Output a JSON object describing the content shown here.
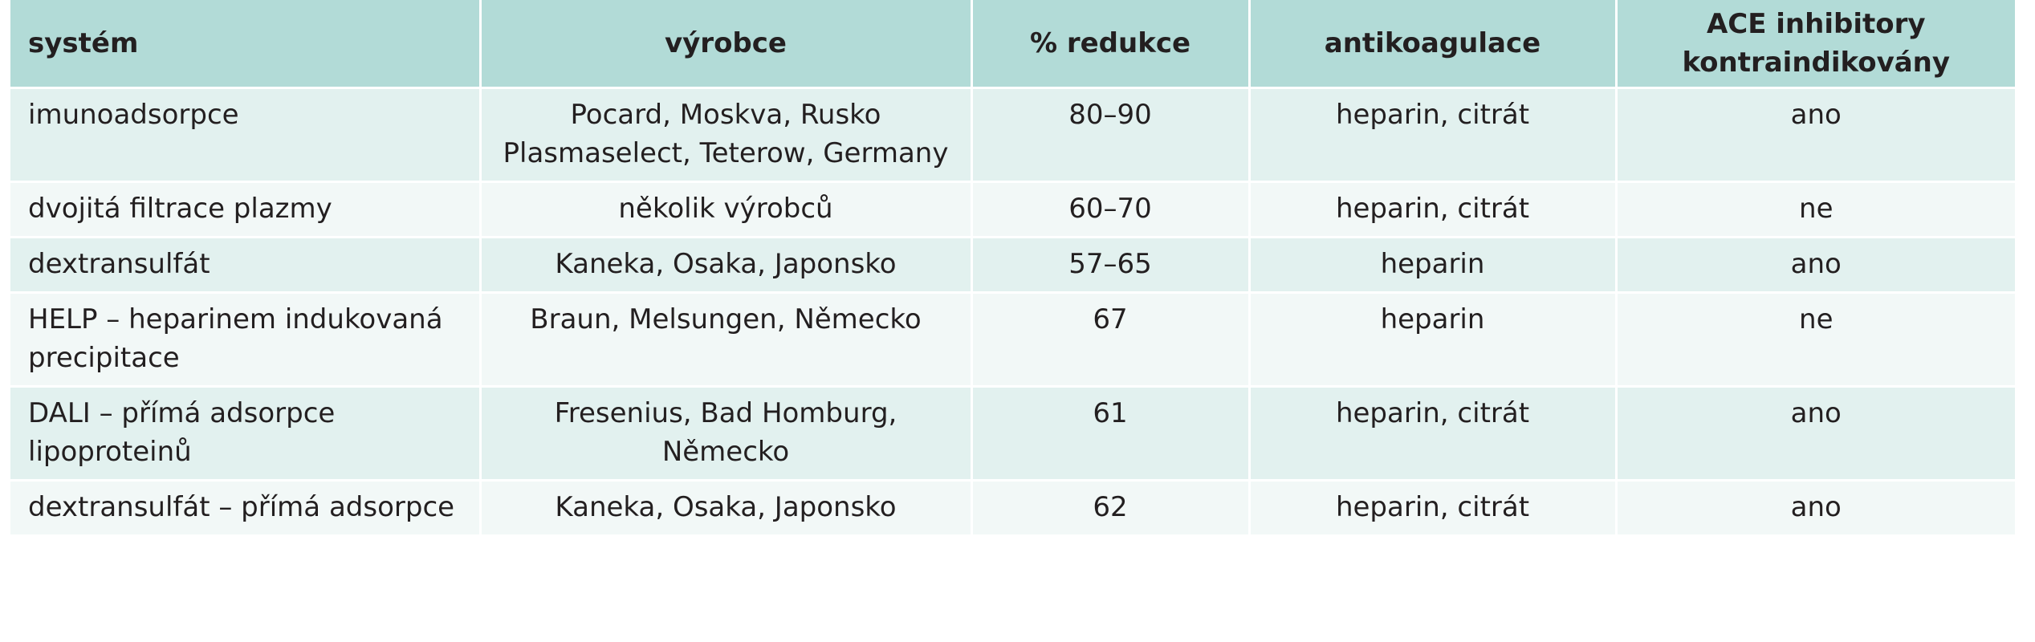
{
  "table": {
    "header": [
      "systém",
      "výrobce",
      "% redukce",
      "antikoagulace",
      "ACE inhibitory kontraindikovány"
    ],
    "rows": [
      [
        [
          "imunoadsorpce"
        ],
        [
          "Pocard, Moskva, Rusko",
          "Plasmaselect, Teterow, Germany"
        ],
        [
          "80–90"
        ],
        [
          "heparin, citrát"
        ],
        [
          "ano"
        ]
      ],
      [
        [
          "dvojitá filtrace plazmy"
        ],
        [
          "několik výrobců"
        ],
        [
          "60–70"
        ],
        [
          "heparin, citrát"
        ],
        [
          "ne"
        ]
      ],
      [
        [
          "dextransulfát"
        ],
        [
          "Kaneka, Osaka, Japonsko"
        ],
        [
          "57–65"
        ],
        [
          "heparin"
        ],
        [
          "ano"
        ]
      ],
      [
        [
          "HELP – heparinem indukovaná precipitace"
        ],
        [
          "Braun, Melsungen, Německo"
        ],
        [
          "67"
        ],
        [
          "heparin"
        ],
        [
          "ne"
        ]
      ],
      [
        [
          "DALI – přímá adsorpce lipoproteinů"
        ],
        [
          "Fresenius, Bad Homburg, Německo"
        ],
        [
          "61"
        ],
        [
          "heparin, citrát"
        ],
        [
          "ano"
        ]
      ],
      [
        [
          "dextransulfát – přímá adsorpce"
        ],
        [
          "Kaneka, Osaka, Japonsko"
        ],
        [
          "62"
        ],
        [
          "heparin, citrát"
        ],
        [
          "ano"
        ]
      ]
    ]
  }
}
